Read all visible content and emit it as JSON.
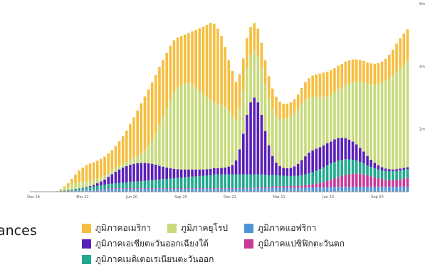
{
  "legend": {
    "title_fragment": "ances"
  },
  "chart_data": {
    "type": "bar",
    "stacked": true,
    "x_ticks": [
      "Dec 19",
      "Mar 21",
      "Jun 20",
      "Sep 20",
      "Dec 21",
      "Mar 11",
      "Jun 20",
      "Sep 20"
    ],
    "y_ticks": [
      "",
      "2m",
      "4m",
      "6m"
    ],
    "ylim": [
      0,
      6
    ],
    "grid": false,
    "legend_placement": "bottom",
    "series": [
      {
        "name": "ภูมิภาคแอฟริกา",
        "color": "#4f95d6",
        "values": [
          0,
          0,
          0,
          0,
          0,
          0,
          0,
          0,
          0.01,
          0.01,
          0.01,
          0.02,
          0.02,
          0.03,
          0.03,
          0.04,
          0.05,
          0.06,
          0.07,
          0.08,
          0.08,
          0.09,
          0.09,
          0.09,
          0.09,
          0.09,
          0.09,
          0.09,
          0.09,
          0.09,
          0.09,
          0.09,
          0.09,
          0.09,
          0.09,
          0.09,
          0.09,
          0.09,
          0.09,
          0.09,
          0.09,
          0.09,
          0.09,
          0.09,
          0.09,
          0.09,
          0.09,
          0.09,
          0.09,
          0.09,
          0.1,
          0.1,
          0.1,
          0.1,
          0.1,
          0.1,
          0.1,
          0.1,
          0.1,
          0.1,
          0.1,
          0.11,
          0.11,
          0.12,
          0.12,
          0.12,
          0.13,
          0.13,
          0.13,
          0.13,
          0.13,
          0.13,
          0.13,
          0.13,
          0.13,
          0.13,
          0.14,
          0.14,
          0.14,
          0.14,
          0.14,
          0.15,
          0.15,
          0.15,
          0.15,
          0.15,
          0.16,
          0.16,
          0.16,
          0.16,
          0.16,
          0.16,
          0.16,
          0.16,
          0.16,
          0.16,
          0.16,
          0.16,
          0.16,
          0.16,
          0.16,
          0.16,
          0.16,
          0.16
        ]
      },
      {
        "name": "ภูมิภาคแปซิฟิกตะวันตก",
        "color": "#c9399a",
        "values": [
          0,
          0,
          0,
          0,
          0,
          0,
          0,
          0,
          0.01,
          0.01,
          0.01,
          0.01,
          0.01,
          0.01,
          0.01,
          0.01,
          0.01,
          0.01,
          0.01,
          0.01,
          0.01,
          0.02,
          0.02,
          0.02,
          0.02,
          0.02,
          0.02,
          0.02,
          0.02,
          0.02,
          0.02,
          0.02,
          0.02,
          0.02,
          0.02,
          0.02,
          0.02,
          0.02,
          0.02,
          0.02,
          0.02,
          0.02,
          0.02,
          0.02,
          0.02,
          0.02,
          0.02,
          0.02,
          0.02,
          0.02,
          0.02,
          0.02,
          0.02,
          0.02,
          0.02,
          0.02,
          0.02,
          0.02,
          0.02,
          0.02,
          0.02,
          0.02,
          0.03,
          0.03,
          0.03,
          0.03,
          0.04,
          0.04,
          0.04,
          0.04,
          0.05,
          0.05,
          0.06,
          0.06,
          0.07,
          0.08,
          0.09,
          0.1,
          0.12,
          0.14,
          0.17,
          0.2,
          0.23,
          0.27,
          0.31,
          0.35,
          0.38,
          0.4,
          0.42,
          0.42,
          0.41,
          0.39,
          0.36,
          0.33,
          0.3,
          0.27,
          0.24,
          0.22,
          0.21,
          0.21,
          0.22,
          0.24,
          0.26,
          0.28
        ]
      },
      {
        "name": "ภูมิภาคเมดิเตอเรเนียนตะวันออก",
        "color": "#22a98f",
        "values": [
          0,
          0,
          0,
          0,
          0,
          0,
          0,
          0,
          0.01,
          0.02,
          0.03,
          0.04,
          0.05,
          0.06,
          0.07,
          0.08,
          0.09,
          0.1,
          0.11,
          0.12,
          0.13,
          0.14,
          0.15,
          0.16,
          0.17,
          0.18,
          0.19,
          0.2,
          0.21,
          0.22,
          0.23,
          0.24,
          0.25,
          0.26,
          0.27,
          0.28,
          0.29,
          0.3,
          0.31,
          0.32,
          0.33,
          0.34,
          0.35,
          0.36,
          0.37,
          0.38,
          0.39,
          0.4,
          0.41,
          0.42,
          0.43,
          0.43,
          0.43,
          0.43,
          0.43,
          0.43,
          0.43,
          0.43,
          0.43,
          0.43,
          0.43,
          0.42,
          0.41,
          0.4,
          0.39,
          0.38,
          0.37,
          0.36,
          0.35,
          0.34,
          0.33,
          0.32,
          0.32,
          0.32,
          0.33,
          0.34,
          0.36,
          0.38,
          0.41,
          0.44,
          0.47,
          0.5,
          0.52,
          0.53,
          0.53,
          0.52,
          0.5,
          0.47,
          0.44,
          0.41,
          0.38,
          0.35,
          0.32,
          0.3,
          0.29,
          0.28,
          0.28,
          0.28,
          0.28,
          0.28,
          0.28,
          0.28,
          0.28,
          0.28
        ]
      },
      {
        "name": "ภูมิภาคเอเชียตะวันออกเฉียงใต้",
        "color": "#5a1fb8",
        "values": [
          0,
          0,
          0,
          0,
          0,
          0,
          0,
          0,
          0,
          0,
          0,
          0,
          0.01,
          0.01,
          0.01,
          0.02,
          0.03,
          0.05,
          0.08,
          0.12,
          0.17,
          0.23,
          0.3,
          0.37,
          0.43,
          0.48,
          0.52,
          0.55,
          0.57,
          0.58,
          0.58,
          0.57,
          0.55,
          0.52,
          0.48,
          0.44,
          0.4,
          0.36,
          0.33,
          0.3,
          0.28,
          0.26,
          0.25,
          0.24,
          0.23,
          0.22,
          0.21,
          0.2,
          0.2,
          0.2,
          0.2,
          0.2,
          0.21,
          0.22,
          0.25,
          0.3,
          0.45,
          0.8,
          1.3,
          1.9,
          2.3,
          2.45,
          2.3,
          1.9,
          1.4,
          0.95,
          0.6,
          0.4,
          0.3,
          0.25,
          0.24,
          0.26,
          0.3,
          0.38,
          0.48,
          0.58,
          0.66,
          0.7,
          0.7,
          0.7,
          0.7,
          0.7,
          0.7,
          0.72,
          0.72,
          0.7,
          0.67,
          0.63,
          0.58,
          0.52,
          0.45,
          0.38,
          0.3,
          0.23,
          0.17,
          0.13,
          0.1,
          0.08,
          0.07,
          0.06,
          0.06,
          0.06,
          0.06,
          0.06
        ]
      },
      {
        "name": "ภูมิภาคยุโรป",
        "color": "#c7da7c",
        "values": [
          0,
          0,
          0,
          0,
          0,
          0,
          0.01,
          0.02,
          0.04,
          0.08,
          0.12,
          0.16,
          0.18,
          0.19,
          0.19,
          0.18,
          0.17,
          0.16,
          0.15,
          0.14,
          0.13,
          0.12,
          0.12,
          0.12,
          0.12,
          0.12,
          0.13,
          0.15,
          0.18,
          0.23,
          0.3,
          0.4,
          0.55,
          0.75,
          1,
          1.3,
          1.6,
          1.9,
          2.2,
          2.45,
          2.6,
          2.7,
          2.75,
          2.75,
          2.7,
          2.6,
          2.5,
          2.4,
          2.3,
          2.2,
          2.1,
          2.05,
          2,
          1.95,
          1.8,
          1.6,
          1.3,
          1.3,
          1.4,
          1.5,
          1.5,
          1.5,
          1.5,
          1.5,
          1.5,
          1.5,
          1.5,
          1.5,
          1.5,
          1.55,
          1.6,
          1.65,
          1.7,
          1.75,
          1.8,
          1.8,
          1.75,
          1.7,
          1.65,
          1.6,
          1.55,
          1.5,
          1.5,
          1.5,
          1.55,
          1.6,
          1.7,
          1.8,
          1.9,
          2,
          2.1,
          2.2,
          2.3,
          2.4,
          2.5,
          2.6,
          2.7,
          2.8,
          2.9,
          3,
          3.1,
          3.2,
          3.3,
          3.4
        ]
      },
      {
        "name": "ภูมิภาคอเมริกา",
        "color": "#f6be3f",
        "values": [
          0,
          0,
          0,
          0,
          0,
          0,
          0,
          0,
          0.02,
          0.05,
          0.1,
          0.18,
          0.28,
          0.38,
          0.46,
          0.52,
          0.55,
          0.56,
          0.57,
          0.58,
          0.6,
          0.62,
          0.65,
          0.7,
          0.78,
          0.88,
          1,
          1.15,
          1.3,
          1.45,
          1.6,
          1.72,
          1.8,
          1.85,
          1.86,
          1.85,
          1.8,
          1.75,
          1.7,
          1.65,
          1.6,
          1.55,
          1.55,
          1.6,
          1.7,
          1.85,
          2,
          2.15,
          2.3,
          2.45,
          2.5,
          2.4,
          2.2,
          1.9,
          1.6,
          1.4,
          1.2,
          1.1,
          1,
          0.95,
          0.9,
          0.88,
          0.85,
          0.8,
          0.75,
          0.7,
          0.65,
          0.6,
          0.55,
          0.5,
          0.46,
          0.44,
          0.44,
          0.46,
          0.5,
          0.56,
          0.62,
          0.68,
          0.72,
          0.75,
          0.77,
          0.78,
          0.78,
          0.77,
          0.76,
          0.75,
          0.74,
          0.73,
          0.72,
          0.71,
          0.7,
          0.69,
          0.68,
          0.67,
          0.66,
          0.66,
          0.67,
          0.7,
          0.75,
          0.82,
          0.9,
          0.95,
          0.98,
          1
        ]
      }
    ]
  },
  "legend_items": [
    {
      "label": "ภูมิภาคอเมริกา",
      "color": "#f6be3f"
    },
    {
      "label": "ภูมิภาคยุโรป",
      "color": "#c7da7c"
    },
    {
      "label": "ภูมิภาคแอฟริกา",
      "color": "#4f95d6"
    },
    {
      "label": "ภูมิภาคเอเชียตะวันออกเฉียงใต้",
      "color": "#5a1fb8"
    },
    {
      "label": "ภูมิภาคแปซิฟิกตะวันตก",
      "color": "#c9399a"
    },
    {
      "label": "ภูมิภาคเมดิเตอเรเนียนตะวันออก",
      "color": "#22a98f"
    }
  ]
}
